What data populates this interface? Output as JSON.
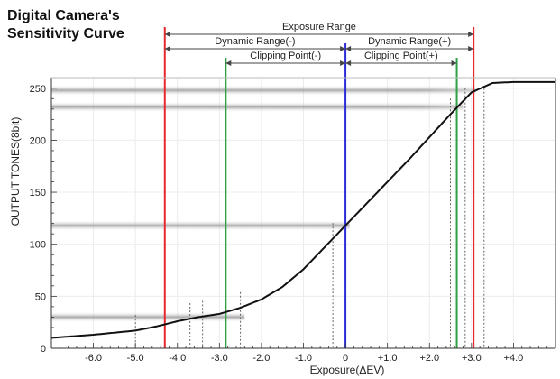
{
  "chart_data": {
    "type": "line",
    "title_line1": "Digital Camera's",
    "title_line2": "Sensitivity  Curve",
    "xlabel": "Exposure(ΔEV)",
    "ylabel": "OUTPUT TONES(8bit)",
    "xlim": [
      -7.0,
      5.0
    ],
    "ylim": [
      0,
      256
    ],
    "x_ticks": [
      -6.0,
      -5.0,
      -4.0,
      -3.0,
      -2.0,
      -1.0,
      0,
      1.0,
      2.0,
      3.0,
      4.0
    ],
    "x_tick_labels": [
      "-6.0",
      "-5.0",
      "-4.0",
      "-3.0",
      "-2.0",
      "-1.0",
      "0",
      "+1.0",
      "+2.0",
      "+3.0",
      "+4.0"
    ],
    "y_ticks": [
      0,
      50,
      100,
      150,
      200,
      250
    ],
    "y_tick_labels": [
      "0",
      "50",
      "100",
      "150",
      "200",
      "250"
    ],
    "grid": true,
    "series": [
      {
        "x": [
          -7.0,
          -6.0,
          -5.0,
          -4.5,
          -4.0,
          -3.5,
          -3.0,
          -2.5,
          -2.0,
          -1.5,
          -1.0,
          -0.5,
          0.0,
          0.5,
          1.0,
          1.5,
          2.0,
          2.5,
          3.0,
          3.5,
          4.0,
          5.0
        ],
        "y": [
          10,
          13,
          17,
          21,
          26,
          30,
          33,
          39,
          47,
          59,
          76,
          97,
          118,
          139,
          160,
          181,
          203,
          225,
          246,
          255,
          256,
          256
        ]
      }
    ],
    "vertical_markers": [
      {
        "x": -4.3,
        "color": "#e8282c"
      },
      {
        "x": 3.05,
        "color": "#e8282c"
      },
      {
        "x": -2.85,
        "color": "#2ea043"
      },
      {
        "x": 2.65,
        "color": "#2ea043"
      },
      {
        "x": 0.0,
        "color": "#2b2bd9"
      }
    ],
    "ranges": [
      {
        "label": "Exposure Range",
        "from": -4.3,
        "to": 3.05
      },
      {
        "label": "Dynamic Range(-)",
        "from": -4.3,
        "to": 0.0
      },
      {
        "label": "Dynamic Range(+)",
        "from": 0.0,
        "to": 3.05
      },
      {
        "label": "Clipping Point(-)",
        "from": -2.85,
        "to": 0.0
      },
      {
        "label": "Clipping Point(+)",
        "from": 0.0,
        "to": 2.65
      }
    ],
    "shaded_bands_y": [
      248,
      232,
      118,
      30
    ],
    "dashed_refs_x": [
      -5.0,
      -3.7,
      -3.4,
      -2.5,
      -0.3,
      2.5,
      2.85,
      3.3
    ]
  }
}
